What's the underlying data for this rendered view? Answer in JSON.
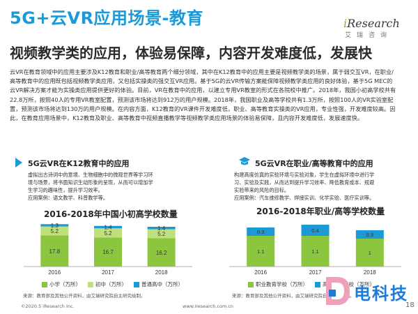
{
  "header": {
    "title": "5G+云VR应用场景-教育",
    "subtitle": "视频教学类的应用，体验易保障，内容开发难度低，发展快"
  },
  "logo": {
    "brand_i": "i",
    "brand_rest": "Research",
    "cn": "艾瑞咨询"
  },
  "body_paragraph": "云VR在教育领域中的应用主要涉及K12教育和职业/高等教育两个细分领域，其中在K12教育中的应用主要是视频教学类的场景，属于弱交互VR，在职业/高等教育中的应用既包括视频教学类应用，又包括实操类的强交互VR应用。基于5G的云VR传输方案能保障视频教学类应用的良好体验，基于5G MEC的云VR解决方案才能为实操类应用提供更好的体验。目前，VR在教育中的应用，以建立专用VR教室的形式在各院校中推广。2018年，我国小初高学校共有22.8万所，按照40人的专用VR教室配置，预测该市场将达到912万的用户规模。2018年，我国职业及高等学校共有1.3万所，按照100人的VR实验室配置，预测该市场将达到130万的用户规模。在内容方面，K12教育的VR课件开发难度低，职业、高等教育实操类的VR应用，专业性强，开发难度较高。因此，在教育应用场景中，K12教育及职业、高等教育中视频直播教学等视频教学类应用场景的体验易保障，且内容开发难度低，发展速度快。",
  "left_panel": {
    "heading": "5G云VR在K12教育中的应用",
    "desc_lines": [
      "虚拟出古诗词中的意境、生物细胞中的微观世界等学习环",
      "境与场景，将书面知识生动形象的呈现，从而可以增加学",
      "生学习的趣味性，提升学习效率。",
      "应用案例：语文教学、科普教学等。"
    ],
    "chart_title": "2016-2018年中国小初高学校数量",
    "source": "来源：教育部及其他公开资料，由艾瑞研究院自主研究绘制。"
  },
  "right_panel": {
    "heading": "5G云VR在职业/高等教育中的应用",
    "desc_lines": [
      "构建高度仿真的实验环境与实验对象，学生在虚拟环境中进行学",
      "习、实验及实践，从而达到提升学习效率、降低教育成本、规避",
      "实验带来的风险的目标。",
      "应用案例：汽车维修教学、焊接实训、化学实验、医疗实训等。"
    ],
    "chart_title": "2016-2018年职业/高等学校数量",
    "source": "来源：教育部及其他公开资料，由艾瑞研究院自主研究绘制。"
  },
  "chart_data": [
    {
      "type": "bar",
      "stacked": true,
      "title": "2016-2018年中国小初高学校数量",
      "categories": [
        "2016",
        "2017",
        "2018"
      ],
      "series": [
        {
          "name": "小学（万所）",
          "values": [
            17.8,
            16.7,
            16.2
          ],
          "color": "#8cc63f"
        },
        {
          "name": "初中（万所）",
          "values": [
            5.2,
            5.2,
            5.2
          ],
          "color": "#bfe07a"
        },
        {
          "name": "普通高中（万所）",
          "values": [
            1.3,
            1.4,
            1.4
          ],
          "color": "#1a9ad6"
        }
      ],
      "legend_position": "bottom",
      "grid": false
    },
    {
      "type": "bar",
      "stacked": true,
      "title": "2016-2018年职业/高等学校数量",
      "categories": [
        "2016",
        "2017",
        "2018"
      ],
      "series": [
        {
          "name": "职业教育学校（万所）",
          "values": [
            1.1,
            1.1,
            1.0
          ],
          "color": "#8cc63f"
        },
        {
          "name": "高等教育学校（万所）",
          "values": [
            0.3,
            0.4,
            0.3
          ],
          "color": "#1a9ad6"
        }
      ],
      "legend_position": "bottom",
      "grid": false
    }
  ],
  "footer": {
    "copyright": "©2020.5 iResearch Inc.",
    "url": "www.iresearch.com.cn",
    "page_number": "18"
  },
  "watermark": {
    "text": "电科技"
  }
}
